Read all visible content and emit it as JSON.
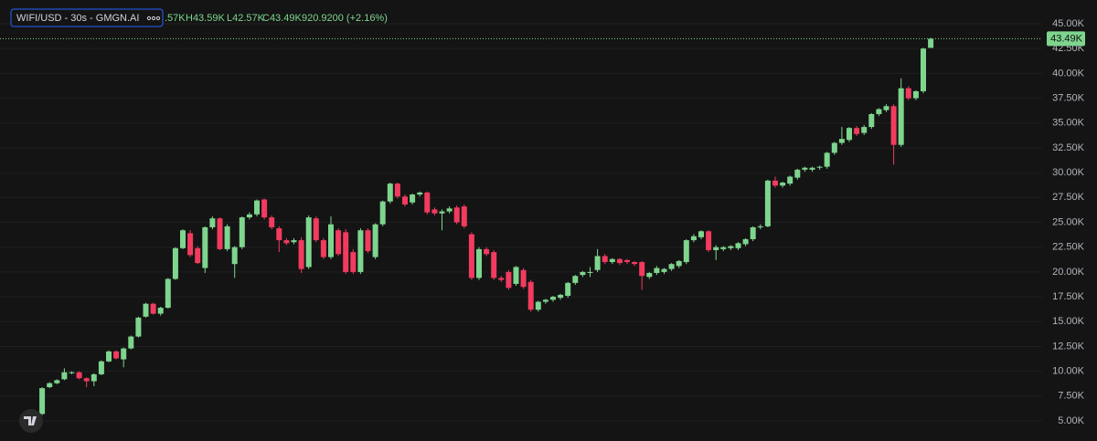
{
  "chart_data": {
    "type": "candlestick",
    "title": "WIFI/USD - 30s - GMGN.AI",
    "legend_values": [
      ".57K",
      "H43.59K",
      "L42.57K",
      "C43.49K",
      "920.9200 (+2.16%)"
    ],
    "up_color": "#7ed58e",
    "down_color": "#f23b5f",
    "grid": true,
    "ylim": [
      2.98,
      47.39
    ],
    "yticks": [
      {
        "value": 45,
        "label": "45.00K"
      },
      {
        "value": 42.5,
        "label": "42.50K"
      },
      {
        "value": 40,
        "label": "40.00K"
      },
      {
        "value": 37.5,
        "label": "37.50K"
      },
      {
        "value": 35,
        "label": "35.00K"
      },
      {
        "value": 32.5,
        "label": "32.50K"
      },
      {
        "value": 30,
        "label": "30.00K"
      },
      {
        "value": 27.5,
        "label": "27.50K"
      },
      {
        "value": 25,
        "label": "25.00K"
      },
      {
        "value": 22.5,
        "label": "22.50K"
      },
      {
        "value": 20,
        "label": "20.00K"
      },
      {
        "value": 17.5,
        "label": "17.50K"
      },
      {
        "value": 15,
        "label": "15.00K"
      },
      {
        "value": 12.5,
        "label": "12.50K"
      },
      {
        "value": 10,
        "label": "10.00K"
      },
      {
        "value": 7.5,
        "label": "7.50K"
      },
      {
        "value": 5,
        "label": "5.00K"
      }
    ],
    "last_price": {
      "value": 43.49,
      "label": "43.49K"
    },
    "open": [
      5.5,
      5.7,
      8.4,
      8.8,
      9.2,
      9.8,
      9.9,
      9.3,
      9.0,
      9.7,
      11.0,
      12.0,
      11.2,
      12.3,
      13.5,
      15.5,
      16.8,
      15.8,
      16.4,
      19.3,
      22.4,
      23.9,
      22.4,
      20.4,
      24.5,
      25.4,
      22.3,
      20.8,
      22.5,
      25.5,
      25.8,
      27.3,
      25.5,
      24.4,
      23.2,
      23.0,
      23.2,
      20.5,
      25.4,
      23.2,
      21.5,
      24.2,
      24.0,
      22.0,
      20.0,
      24.2,
      21.5,
      24.8,
      27.1,
      28.9,
      27.6,
      27.0,
      27.8,
      28.0,
      26.3,
      25.9,
      26.1,
      26.5,
      26.6,
      23.8,
      19.4,
      22.3,
      22.0,
      19.4,
      20.0,
      18.8,
      20.2,
      19.0,
      16.2,
      17.0,
      17.2,
      17.4,
      17.6,
      18.9,
      19.7,
      19.9,
      20.2,
      21.6,
      21.0,
      21.3,
      21.2,
      21.0,
      21.0,
      19.5,
      19.9,
      20.0,
      20.3,
      20.6,
      21.0,
      23.2,
      23.5,
      24.1,
      22.2,
      22.3,
      22.4,
      22.4,
      22.8,
      23.3,
      24.5,
      24.6,
      29.2,
      28.7,
      28.9,
      29.5,
      30.3,
      30.3,
      30.5,
      30.6,
      32.0,
      33.0,
      33.3,
      34.5,
      34.0,
      34.6,
      35.9,
      36.3,
      36.7,
      32.8,
      38.5,
      37.5,
      38.2,
      42.57
    ],
    "high": [
      6.1,
      8.4,
      8.9,
      9.2,
      10.3,
      10.0,
      10.0,
      9.4,
      9.8,
      11.1,
      12.1,
      12.1,
      12.4,
      13.6,
      15.5,
      16.9,
      16.9,
      16.5,
      19.4,
      22.5,
      24.3,
      24.2,
      22.6,
      24.6,
      25.6,
      25.5,
      24.8,
      22.6,
      25.6,
      26.0,
      27.3,
      27.4,
      25.7,
      24.6,
      23.4,
      23.4,
      23.5,
      25.7,
      25.6,
      23.4,
      25.6,
      24.4,
      24.3,
      22.3,
      24.4,
      24.4,
      24.9,
      27.2,
      29.0,
      29.0,
      27.8,
      27.9,
      28.1,
      28.1,
      26.5,
      26.3,
      26.6,
      26.7,
      26.8,
      24.0,
      22.5,
      22.5,
      22.2,
      19.6,
      20.2,
      20.6,
      20.4,
      19.2,
      17.1,
      17.3,
      17.6,
      17.8,
      19.0,
      19.7,
      20.1,
      20.5,
      22.3,
      21.8,
      21.4,
      21.4,
      21.3,
      21.1,
      21.1,
      20.0,
      20.6,
      20.4,
      20.9,
      21.2,
      23.3,
      23.8,
      24.2,
      24.2,
      22.7,
      22.6,
      22.7,
      23.0,
      23.4,
      24.6,
      24.8,
      29.3,
      29.6,
      29.1,
      29.7,
      30.4,
      30.6,
      30.6,
      30.7,
      32.1,
      33.1,
      34.6,
      34.6,
      34.7,
      34.8,
      36.0,
      36.5,
      36.9,
      36.9,
      39.5,
      38.7,
      38.3,
      42.6,
      43.59
    ],
    "low": [
      5.3,
      5.6,
      8.3,
      8.7,
      9.1,
      9.7,
      9.2,
      8.4,
      8.5,
      9.6,
      10.9,
      11.2,
      10.4,
      12.2,
      13.4,
      15.4,
      15.7,
      15.6,
      16.3,
      19.2,
      22.3,
      21.5,
      20.8,
      19.9,
      24.3,
      22.2,
      22.1,
      19.4,
      22.3,
      25.3,
      25.6,
      25.3,
      24.3,
      22.0,
      22.7,
      22.8,
      19.9,
      20.3,
      23.0,
      21.3,
      21.3,
      21.6,
      19.8,
      19.8,
      19.8,
      21.9,
      21.3,
      24.6,
      26.9,
      27.4,
      26.6,
      26.8,
      27.6,
      25.8,
      25.7,
      24.2,
      25.9,
      24.8,
      24.4,
      19.2,
      19.2,
      21.6,
      19.2,
      19.0,
      18.2,
      18.6,
      18.3,
      16.0,
      16.0,
      16.8,
      17.0,
      17.2,
      17.4,
      18.7,
      19.5,
      19.5,
      20.0,
      20.8,
      20.8,
      20.7,
      20.8,
      20.6,
      18.2,
      19.3,
      19.7,
      19.8,
      20.1,
      20.4,
      20.8,
      23.0,
      23.3,
      22.0,
      21.2,
      22.1,
      22.2,
      22.2,
      22.6,
      23.1,
      24.3,
      24.5,
      28.5,
      28.5,
      28.7,
      29.3,
      30.1,
      30.1,
      30.3,
      30.4,
      31.8,
      32.8,
      33.1,
      33.7,
      33.8,
      34.4,
      35.7,
      36.1,
      30.8,
      32.6,
      37.3,
      37.3,
      38.0,
      42.57
    ],
    "close": [
      6.0,
      8.3,
      8.8,
      9.1,
      9.9,
      9.9,
      9.3,
      9.0,
      9.7,
      11.0,
      12.0,
      11.3,
      12.3,
      13.5,
      15.4,
      16.8,
      15.8,
      16.4,
      19.3,
      22.4,
      24.2,
      21.7,
      20.9,
      24.5,
      25.4,
      22.3,
      24.6,
      22.5,
      25.5,
      25.8,
      27.2,
      25.5,
      24.5,
      23.2,
      22.9,
      23.2,
      20.3,
      25.5,
      23.2,
      21.5,
      24.8,
      21.8,
      20.0,
      20.0,
      24.2,
      22.1,
      24.8,
      27.1,
      28.9,
      27.6,
      26.8,
      27.8,
      28.0,
      26.0,
      25.9,
      26.1,
      26.4,
      25.0,
      24.6,
      19.4,
      22.3,
      21.8,
      19.4,
      19.2,
      18.4,
      20.5,
      18.5,
      16.2,
      17.0,
      17.2,
      17.5,
      17.7,
      18.9,
      19.6,
      20.0,
      20.0,
      21.6,
      21.0,
      21.3,
      20.9,
      21.0,
      20.8,
      19.6,
      19.9,
      20.4,
      20.3,
      20.8,
      21.1,
      23.2,
      23.6,
      24.1,
      22.2,
      22.5,
      22.5,
      22.6,
      22.9,
      23.3,
      24.5,
      24.6,
      29.2,
      28.7,
      29.0,
      29.6,
      30.3,
      30.5,
      30.5,
      30.6,
      32.0,
      33.0,
      33.4,
      34.5,
      33.9,
      34.6,
      35.9,
      36.4,
      36.7,
      32.8,
      38.5,
      37.5,
      38.2,
      42.5,
      43.49
    ]
  }
}
